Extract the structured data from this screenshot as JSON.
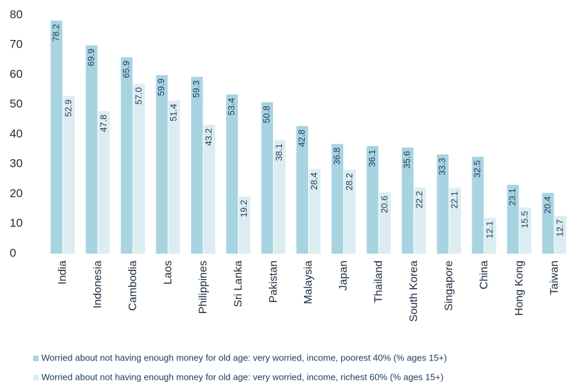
{
  "chart_data": {
    "type": "bar",
    "categories": [
      "India",
      "Indonesia",
      "Cambodia",
      "Laos",
      "Philippines",
      "Sri Lanka",
      "Pakistan",
      "Malaysia",
      "Japan",
      "Thailand",
      "South Korea",
      "Singapore",
      "China",
      "Hong Kong",
      "Taiwan"
    ],
    "series": [
      {
        "name": "Worried about not having enough money for old age: very worried, income, poorest 40% (% ages 15+)",
        "color": "#a8d4e1",
        "values": [
          78.2,
          69.9,
          65.9,
          59.9,
          59.3,
          53.4,
          50.8,
          42.8,
          36.8,
          36.1,
          35.6,
          33.3,
          32.5,
          23.1,
          20.4
        ],
        "value_labels": [
          "78.2",
          "69.9",
          "65.9",
          "59.9",
          "59.3",
          "53.4",
          "50.8",
          "42.8",
          "36.8",
          "36.1",
          "35.6",
          "33.3",
          "32.5",
          "23.1",
          "20.4"
        ]
      },
      {
        "name": "Worried about not having enough money for old age: very worried, income, richest 60% (% ages 15+)",
        "color": "#dcedf2",
        "values": [
          52.9,
          47.8,
          57.0,
          51.4,
          43.2,
          19.2,
          38.1,
          28.4,
          28.2,
          20.6,
          22.2,
          22.1,
          12.1,
          15.5,
          12.7
        ],
        "value_labels": [
          "52.9",
          "47.8",
          "57.0",
          "51.4",
          "43.2",
          "19.2",
          "38.1",
          "28.4",
          "28.2",
          "20.6",
          "22.2",
          "22.1",
          "12.1",
          "15.5",
          "12.7"
        ]
      }
    ],
    "ylim": [
      0,
      80
    ],
    "yticks": [
      0,
      10,
      20,
      30,
      40,
      50,
      60,
      70,
      80
    ]
  }
}
